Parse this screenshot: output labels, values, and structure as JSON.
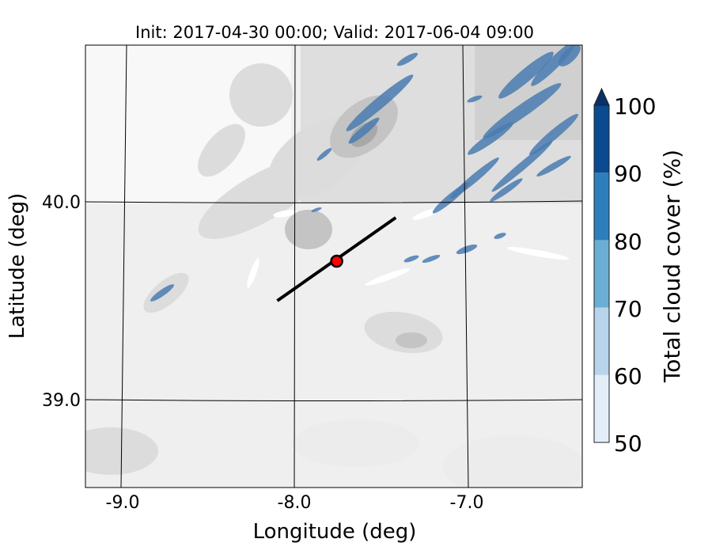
{
  "title": "Init: 2017-04-30 00:00; Valid: 2017-06-04 09:00",
  "xlabel": "Longitude (deg)",
  "ylabel": "Latitude (deg)",
  "x_ticks": [
    "-9.0",
    "-8.0",
    "-7.0"
  ],
  "y_ticks": [
    "40.0",
    "39.0"
  ],
  "extent": {
    "lon": [
      -9.25,
      -6.3
    ],
    "lat": [
      38.55,
      40.8
    ]
  },
  "colorbar": {
    "label": "Total cloud cover (%)",
    "ticks": [
      "50",
      "60",
      "70",
      "80",
      "90",
      "100"
    ],
    "levels": [
      50,
      60,
      70,
      80,
      90,
      100
    ],
    "colors": [
      "#e3eef8",
      "#b7d4ea",
      "#6aaed6",
      "#2e7ebc",
      "#0a4a90"
    ],
    "extend_color": "#08306b",
    "extend": "max"
  },
  "cross_section": {
    "start": [
      -8.1,
      39.5
    ],
    "end": [
      -7.4,
      39.92
    ],
    "color": "#000000"
  },
  "marker": {
    "lon": -7.75,
    "lat": 39.7,
    "color": "#ff0000"
  },
  "terrain_colors": [
    "#f7f7f7",
    "#ececec",
    "#dcdcdc",
    "#c4c4c4",
    "#a8a8a8"
  ],
  "cloud_color": "#4a7bb0"
}
